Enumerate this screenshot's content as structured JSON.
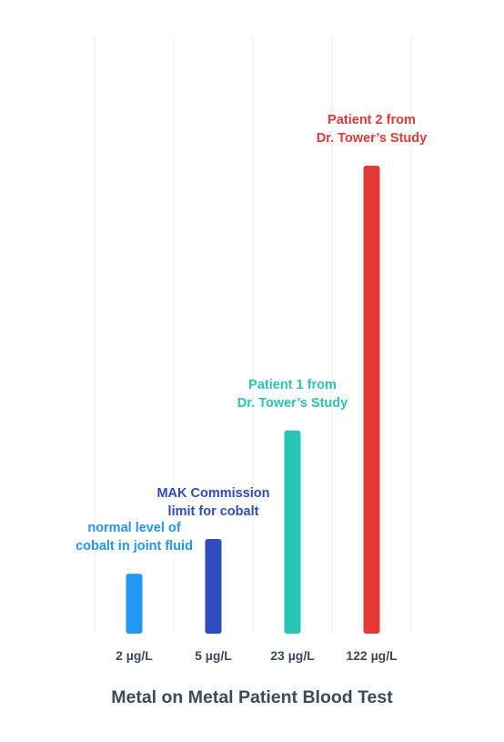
{
  "chart_data": {
    "type": "bar",
    "title": "Metal on Metal Patient Blood Test",
    "xlabel": "",
    "ylabel": "",
    "categories": [
      "2 µg/L",
      "5 µg/L",
      "23 µg/L",
      "122 µg/L"
    ],
    "values": [
      2,
      5,
      23,
      122
    ],
    "annotations": [
      {
        "lines": [
          "normal level of",
          "cobalt in joint fluid"
        ],
        "color": "#2196f3"
      },
      {
        "lines": [
          "MAK Commission",
          "limit for cobalt"
        ],
        "color": "#2e4bbf"
      },
      {
        "lines": [
          "Patient 1 from",
          "Dr. Tower’s Study"
        ],
        "color": "#26c6b4"
      },
      {
        "lines": [
          "Patient 2 from",
          "Dr. Tower’s Study"
        ],
        "color": "#e53935"
      }
    ],
    "grid": true,
    "legend": "none"
  }
}
